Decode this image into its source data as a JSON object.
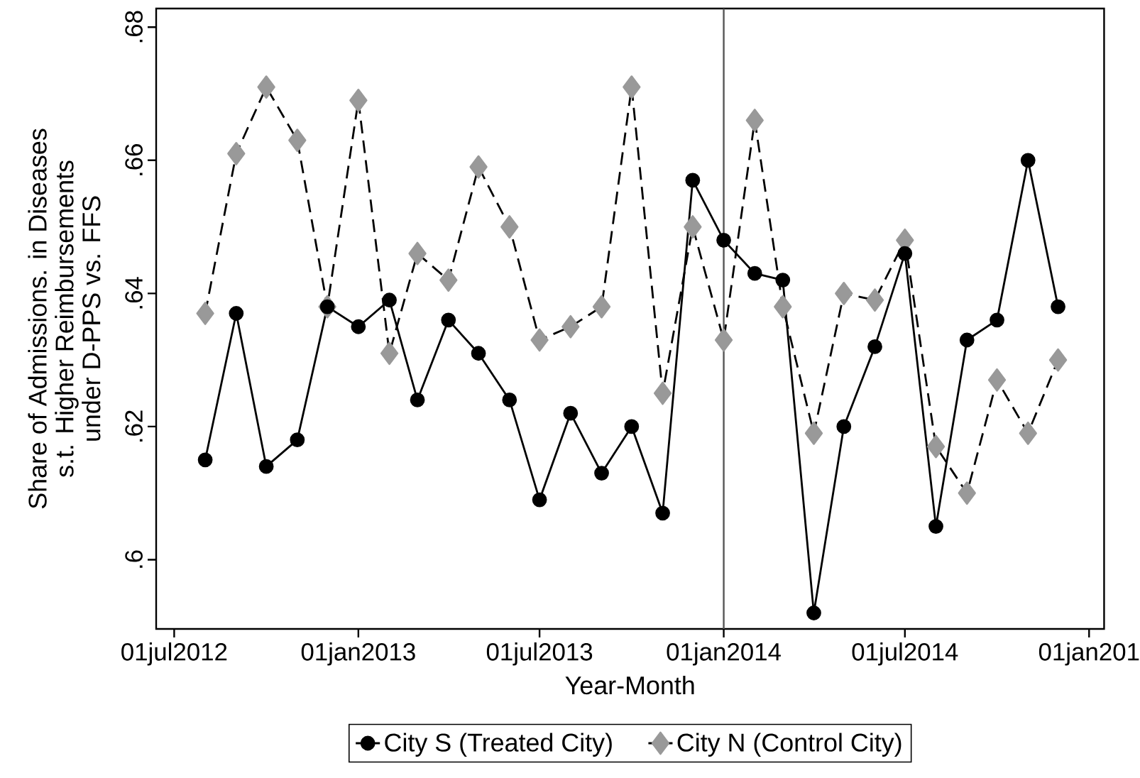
{
  "chart_data": {
    "type": "line",
    "xlabel": "Year-Month",
    "ylabel": "Share of Admissions. in Diseases\ns.t. Higher Reimbursements\nunder D-PPS vs. FFS",
    "x": [
      "2012-08",
      "2012-09",
      "2012-10",
      "2012-11",
      "2012-12",
      "2013-01",
      "2013-02",
      "2013-03",
      "2013-04",
      "2013-05",
      "2013-06",
      "2013-07",
      "2013-08",
      "2013-09",
      "2013-10",
      "2013-11",
      "2013-12",
      "2014-01",
      "2014-02",
      "2014-03",
      "2014-04",
      "2014-05",
      "2014-06",
      "2014-07",
      "2014-08",
      "2014-09",
      "2014-10",
      "2014-11",
      "2014-12"
    ],
    "series": [
      {
        "name": "City S (Treated City)",
        "color": "#000000",
        "marker": "circle",
        "line_style": "solid",
        "values": [
          0.615,
          0.637,
          0.614,
          0.618,
          0.638,
          0.635,
          0.639,
          0.624,
          0.636,
          0.631,
          0.624,
          0.609,
          0.622,
          0.613,
          0.62,
          0.607,
          0.657,
          0.648,
          0.643,
          0.642,
          0.592,
          0.62,
          0.632,
          0.646,
          0.605,
          0.633,
          0.636,
          0.66,
          0.638
        ]
      },
      {
        "name": "City N (Control City)",
        "color": "#999999",
        "marker": "diamond",
        "line_style": "dashed",
        "values": [
          0.637,
          0.661,
          0.671,
          0.663,
          0.638,
          0.669,
          0.631,
          0.646,
          0.642,
          0.659,
          0.65,
          0.633,
          0.635,
          0.638,
          0.671,
          0.625,
          0.65,
          0.633,
          0.666,
          0.638,
          0.619,
          0.64,
          0.639,
          0.648,
          0.617,
          0.61,
          0.627,
          0.619,
          0.63
        ]
      }
    ],
    "xlim": [
      "2012-06-13",
      "2015-01-16"
    ],
    "xticks": [
      {
        "value": "2012-07-01",
        "label": "01jul2012"
      },
      {
        "value": "2013-01-01",
        "label": "01jan2013"
      },
      {
        "value": "2013-07-01",
        "label": "01jul2013"
      },
      {
        "value": "2014-01-01",
        "label": "01jan2014"
      },
      {
        "value": "2014-07-01",
        "label": "01jul2014"
      },
      {
        "value": "2015-01-01",
        "label": "01jan201"
      }
    ],
    "ylim": [
      0.5896,
      0.6828
    ],
    "yticks": [
      {
        "value": 0.6,
        "label": ".6"
      },
      {
        "value": 0.62,
        "label": ".62"
      },
      {
        "value": 0.64,
        "label": ".64"
      },
      {
        "value": 0.66,
        "label": ".66"
      },
      {
        "value": 0.68,
        "label": ".68"
      }
    ],
    "ref_lines": [
      {
        "axis": "x",
        "value": "2014-01-01",
        "color": "#555555"
      }
    ],
    "grid": false,
    "legend": "bottom"
  }
}
